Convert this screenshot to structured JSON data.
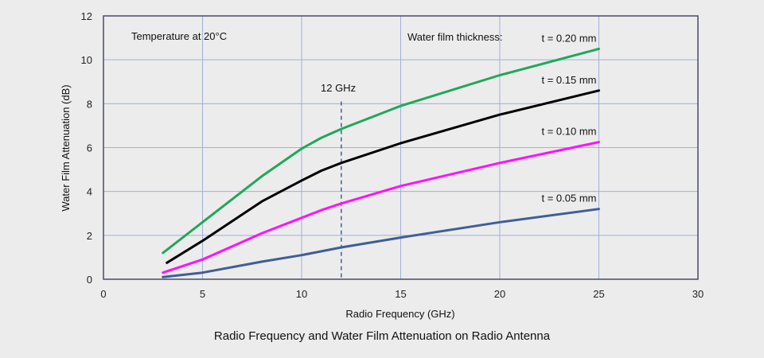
{
  "chart_data": {
    "type": "line",
    "title": "Radio Frequency and Water Film Attenuation on Radio Antenna",
    "xlabel": "Radio Frequency (GHz)",
    "ylabel": "Water Film Attenuation (dB)",
    "xlim": [
      0,
      30
    ],
    "ylim": [
      0,
      12
    ],
    "xticks": [
      0,
      5,
      10,
      15,
      20,
      25,
      30
    ],
    "yticks": [
      0,
      2,
      4,
      6,
      8,
      10,
      12
    ],
    "grid": true,
    "annotations": {
      "temperature": "Temperature at 20°C",
      "thickness_label": "Water film thickness:",
      "marker_label": "12 GHz",
      "marker_x": 12
    },
    "series": [
      {
        "name": "t = 0.20 mm",
        "color": "#1fa85a",
        "points": [
          [
            3,
            1.2
          ],
          [
            5,
            2.6
          ],
          [
            8,
            4.7
          ],
          [
            10,
            5.95
          ],
          [
            11,
            6.45
          ],
          [
            12,
            6.85
          ],
          [
            15,
            7.9
          ],
          [
            20,
            9.3
          ],
          [
            25,
            10.5
          ]
        ]
      },
      {
        "name": "t = 0.15 mm",
        "color": "#000000",
        "points": [
          [
            3.2,
            0.75
          ],
          [
            5,
            1.75
          ],
          [
            8,
            3.55
          ],
          [
            10,
            4.5
          ],
          [
            11,
            4.95
          ],
          [
            12,
            5.3
          ],
          [
            15,
            6.2
          ],
          [
            20,
            7.5
          ],
          [
            25,
            8.6
          ]
        ]
      },
      {
        "name": "t = 0.10 mm",
        "color": "#ff10ff",
        "points": [
          [
            3,
            0.3
          ],
          [
            5,
            0.9
          ],
          [
            8,
            2.1
          ],
          [
            10,
            2.8
          ],
          [
            11,
            3.15
          ],
          [
            12,
            3.45
          ],
          [
            15,
            4.25
          ],
          [
            20,
            5.3
          ],
          [
            25,
            6.25
          ]
        ]
      },
      {
        "name": "t = 0.05 mm",
        "color": "#3f5e96",
        "points": [
          [
            3,
            0.1
          ],
          [
            5,
            0.3
          ],
          [
            8,
            0.8
          ],
          [
            10,
            1.1
          ],
          [
            12,
            1.45
          ],
          [
            15,
            1.9
          ],
          [
            20,
            2.6
          ],
          [
            25,
            3.2
          ]
        ]
      }
    ]
  }
}
